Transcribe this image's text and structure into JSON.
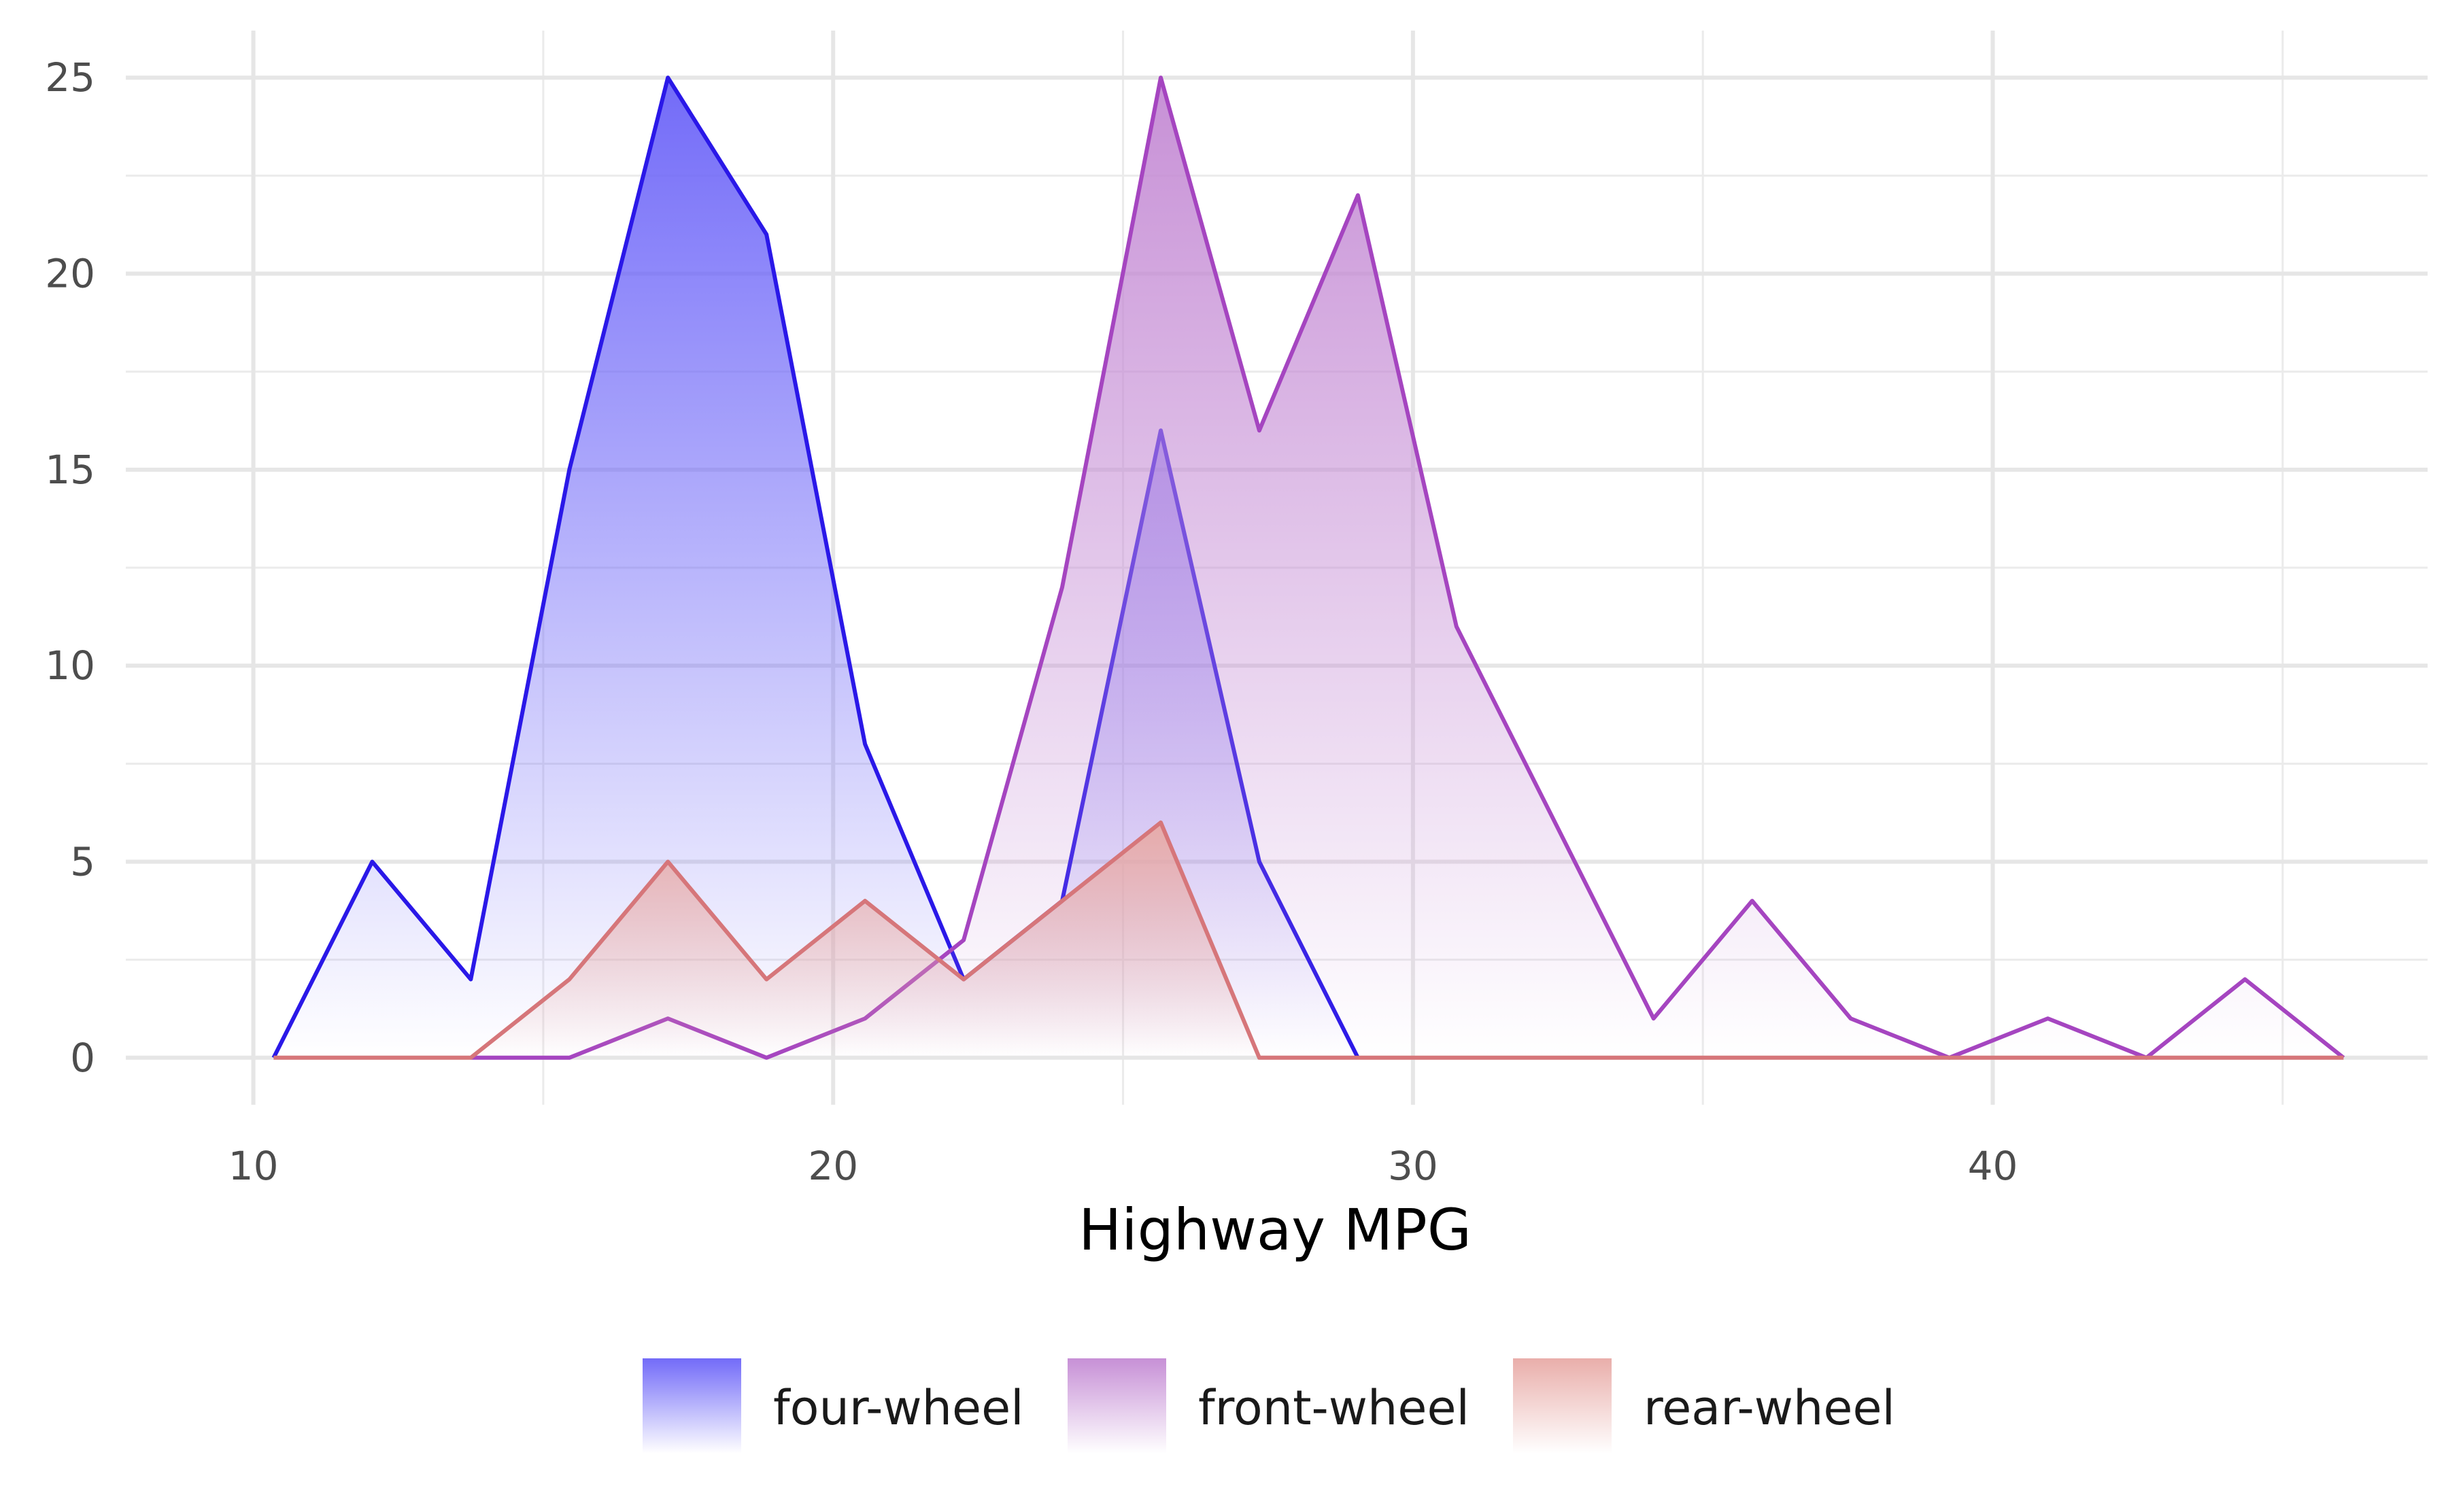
{
  "chart_data": {
    "type": "area",
    "title": "",
    "xlabel": "Highway MPG",
    "ylabel": "",
    "xlim": [
      7.8,
      47.5
    ],
    "ylim": [
      -1.2,
      26.2
    ],
    "x_ticks": [
      10,
      20,
      30,
      40
    ],
    "y_ticks": [
      0,
      5,
      10,
      15,
      20,
      25
    ],
    "grid": true,
    "legend_position": "bottom",
    "x": [
      10.35,
      12.05,
      13.75,
      15.45,
      17.15,
      18.85,
      20.55,
      22.25,
      23.95,
      25.65,
      27.35,
      29.05,
      30.75,
      32.45,
      34.15,
      35.85,
      37.55,
      39.25,
      40.95,
      42.65,
      44.35,
      46.05
    ],
    "series": [
      {
        "name": "four-wheel",
        "color": "#2a18e8",
        "fill": "#6b63f8",
        "values": [
          0,
          5,
          2,
          15,
          25,
          21,
          8,
          2,
          4,
          16,
          5,
          0,
          null,
          null,
          null,
          null,
          null,
          null,
          null,
          null,
          null,
          null
        ]
      },
      {
        "name": "front-wheel",
        "color": "#a545c0",
        "fill": "#c48ad4",
        "values": [
          null,
          null,
          0,
          0,
          1,
          0,
          1,
          3,
          12,
          25,
          16,
          22,
          11,
          6,
          1,
          4,
          1,
          0,
          1,
          0,
          2,
          0
        ]
      },
      {
        "name": "rear-wheel",
        "color": "#d6767a",
        "fill": "#e8aaa6",
        "values": [
          0,
          0,
          0,
          2,
          5,
          2,
          4,
          2,
          4,
          6,
          0,
          0,
          0,
          0,
          0,
          0,
          0,
          0,
          0,
          0,
          0,
          0
        ]
      }
    ]
  }
}
